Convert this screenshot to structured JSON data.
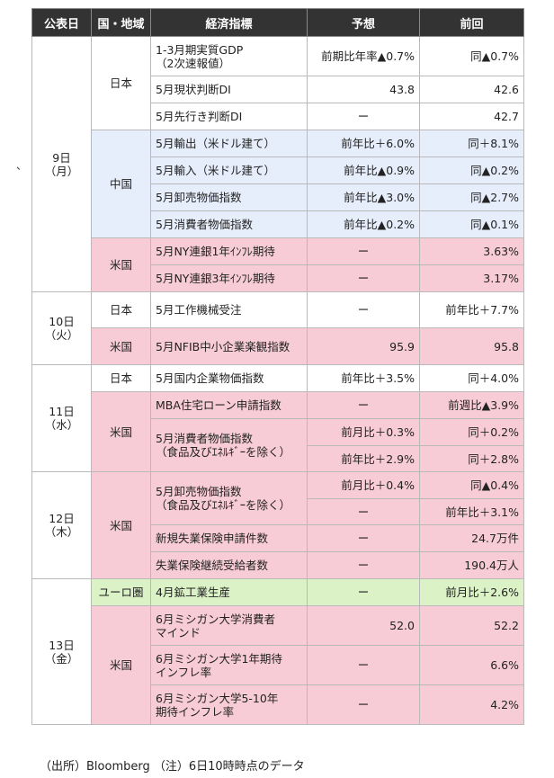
{
  "headers": [
    "公表日",
    "国・地域",
    "経済指標",
    "予想",
    "前回"
  ],
  "dates": {
    "d9": "9日\n（月）",
    "d10": "10日\n（火）",
    "d11": "11日\n（水）",
    "d12": "12日\n（木）",
    "d13": "13日\n（金）"
  },
  "regions": {
    "jp9": "日本",
    "cn9": "中国",
    "us9": "米国",
    "jp10": "日本",
    "us10": "米国",
    "jp11": "日本",
    "us11": "米国",
    "us12": "米国",
    "eu13": "ユーロ圏",
    "us13": "米国"
  },
  "rows": [
    {
      "indicator": "1-3月期実質GDP\n（2次速報値）",
      "forecast": "前期比年率▲0.7%",
      "previous": "同▲0.7%"
    },
    {
      "indicator": "5月現状判断DI",
      "forecast": "43.8",
      "previous": "42.6"
    },
    {
      "indicator": "5月先行き判断DI",
      "forecast": "ー",
      "previous": "42.7"
    },
    {
      "indicator": "5月輸出（米ドル建て）",
      "forecast": "前年比＋6.0%",
      "previous": "同＋8.1%"
    },
    {
      "indicator": "5月輸入（米ドル建て）",
      "forecast": "前年比▲0.9%",
      "previous": "同▲0.2%"
    },
    {
      "indicator": "5月卸売物価指数",
      "forecast": "前年比▲3.0%",
      "previous": "同▲2.7%"
    },
    {
      "indicator": "5月消費者物価指数",
      "forecast": "前年比▲0.2%",
      "previous": "同▲0.1%"
    },
    {
      "indicator": "5月NY連銀1年ｲﾝﾌﾚ期待",
      "forecast": "ー",
      "previous": "3.63%"
    },
    {
      "indicator": "5月NY連銀3年ｲﾝﾌﾚ期待",
      "forecast": "ー",
      "previous": "3.17%"
    },
    {
      "indicator": "5月工作機械受注",
      "forecast": "ー",
      "previous": "前年比＋7.7%"
    },
    {
      "indicator": "5月NFIB中小企業楽観指数",
      "forecast": "95.9",
      "previous": "95.8"
    },
    {
      "indicator": "5月国内企業物価指数",
      "forecast": "前年比＋3.5%",
      "previous": "同＋4.0%"
    },
    {
      "indicator": "MBA住宅ローン申請指数",
      "forecast": "ー",
      "previous": "前週比▲3.9%"
    },
    {
      "indicator": "5月消費者物価指数\n（食品及びｴﾈﾙｷﾞｰを除く）",
      "forecast": "前月比＋0.3%",
      "previous": "同＋0.2%"
    },
    {
      "indicator": "",
      "forecast": "前年比＋2.9%",
      "previous": "同＋2.8%"
    },
    {
      "indicator": "5月卸売物価指数\n（食品及びｴﾈﾙｷﾞｰを除く）",
      "forecast": "前月比＋0.4%",
      "previous": "同▲0.4%"
    },
    {
      "indicator": "",
      "forecast": "ー",
      "previous": "前年比＋3.1%"
    },
    {
      "indicator": "新規失業保険申請件数",
      "forecast": "ー",
      "previous": "24.7万件"
    },
    {
      "indicator": "失業保険継続受給者数",
      "forecast": "ー",
      "previous": "190.4万人"
    },
    {
      "indicator": "4月鉱工業生産",
      "forecast": "ー",
      "previous": "前月比＋2.6%"
    },
    {
      "indicator": "6月ミシガン大学消費者\nマインド",
      "forecast": "52.0",
      "previous": "52.2"
    },
    {
      "indicator": "6月ミシガン大学1年期待\nインフレ率",
      "forecast": "ー",
      "previous": "6.6%"
    },
    {
      "indicator": "6月ミシガン大学5-10年\n期待インフレ率",
      "forecast": "ー",
      "previous": "4.2%"
    }
  ],
  "note": "（出所）Bloomberg （注）6日10時時点のデータ",
  "stray_mark": "、",
  "colors": {
    "header_bg": "#333333",
    "japan_bg": "#ffffff",
    "china_bg": "#e6eefb",
    "us_bg": "#f7ccd6",
    "euro_bg": "#dbf1c6"
  }
}
